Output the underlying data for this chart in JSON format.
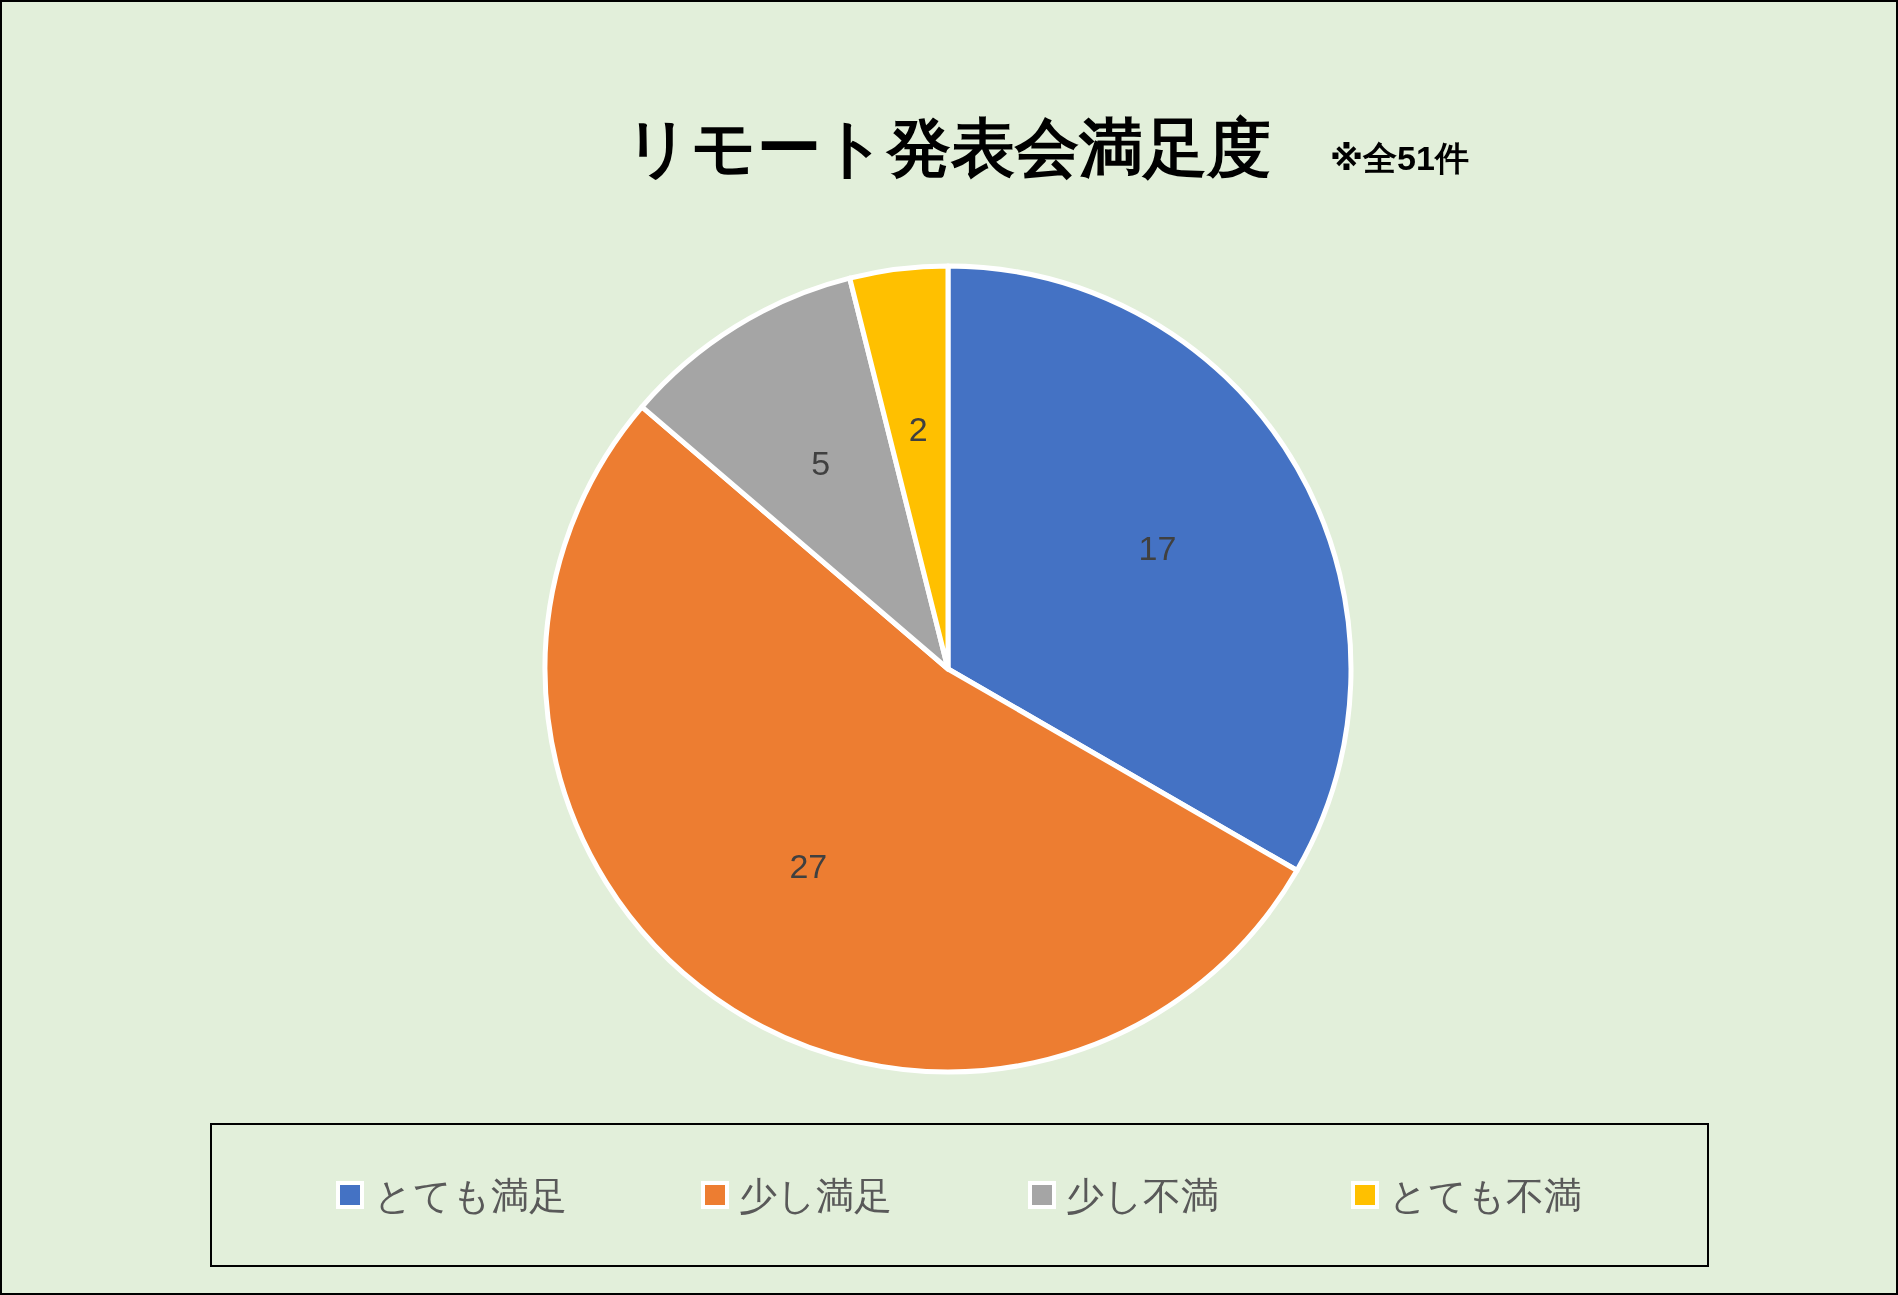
{
  "chart_data": {
    "type": "pie",
    "title": "リモート発表会満足度",
    "subtitle": "※全51件",
    "categories": [
      "とても満足",
      "少し満足",
      "少し不満",
      "とても不満"
    ],
    "values": [
      17,
      27,
      5,
      2
    ],
    "colors": [
      "#4472c4",
      "#ed7d31",
      "#a5a5a5",
      "#ffc000"
    ],
    "data_labels": true,
    "legend": "bottom"
  }
}
